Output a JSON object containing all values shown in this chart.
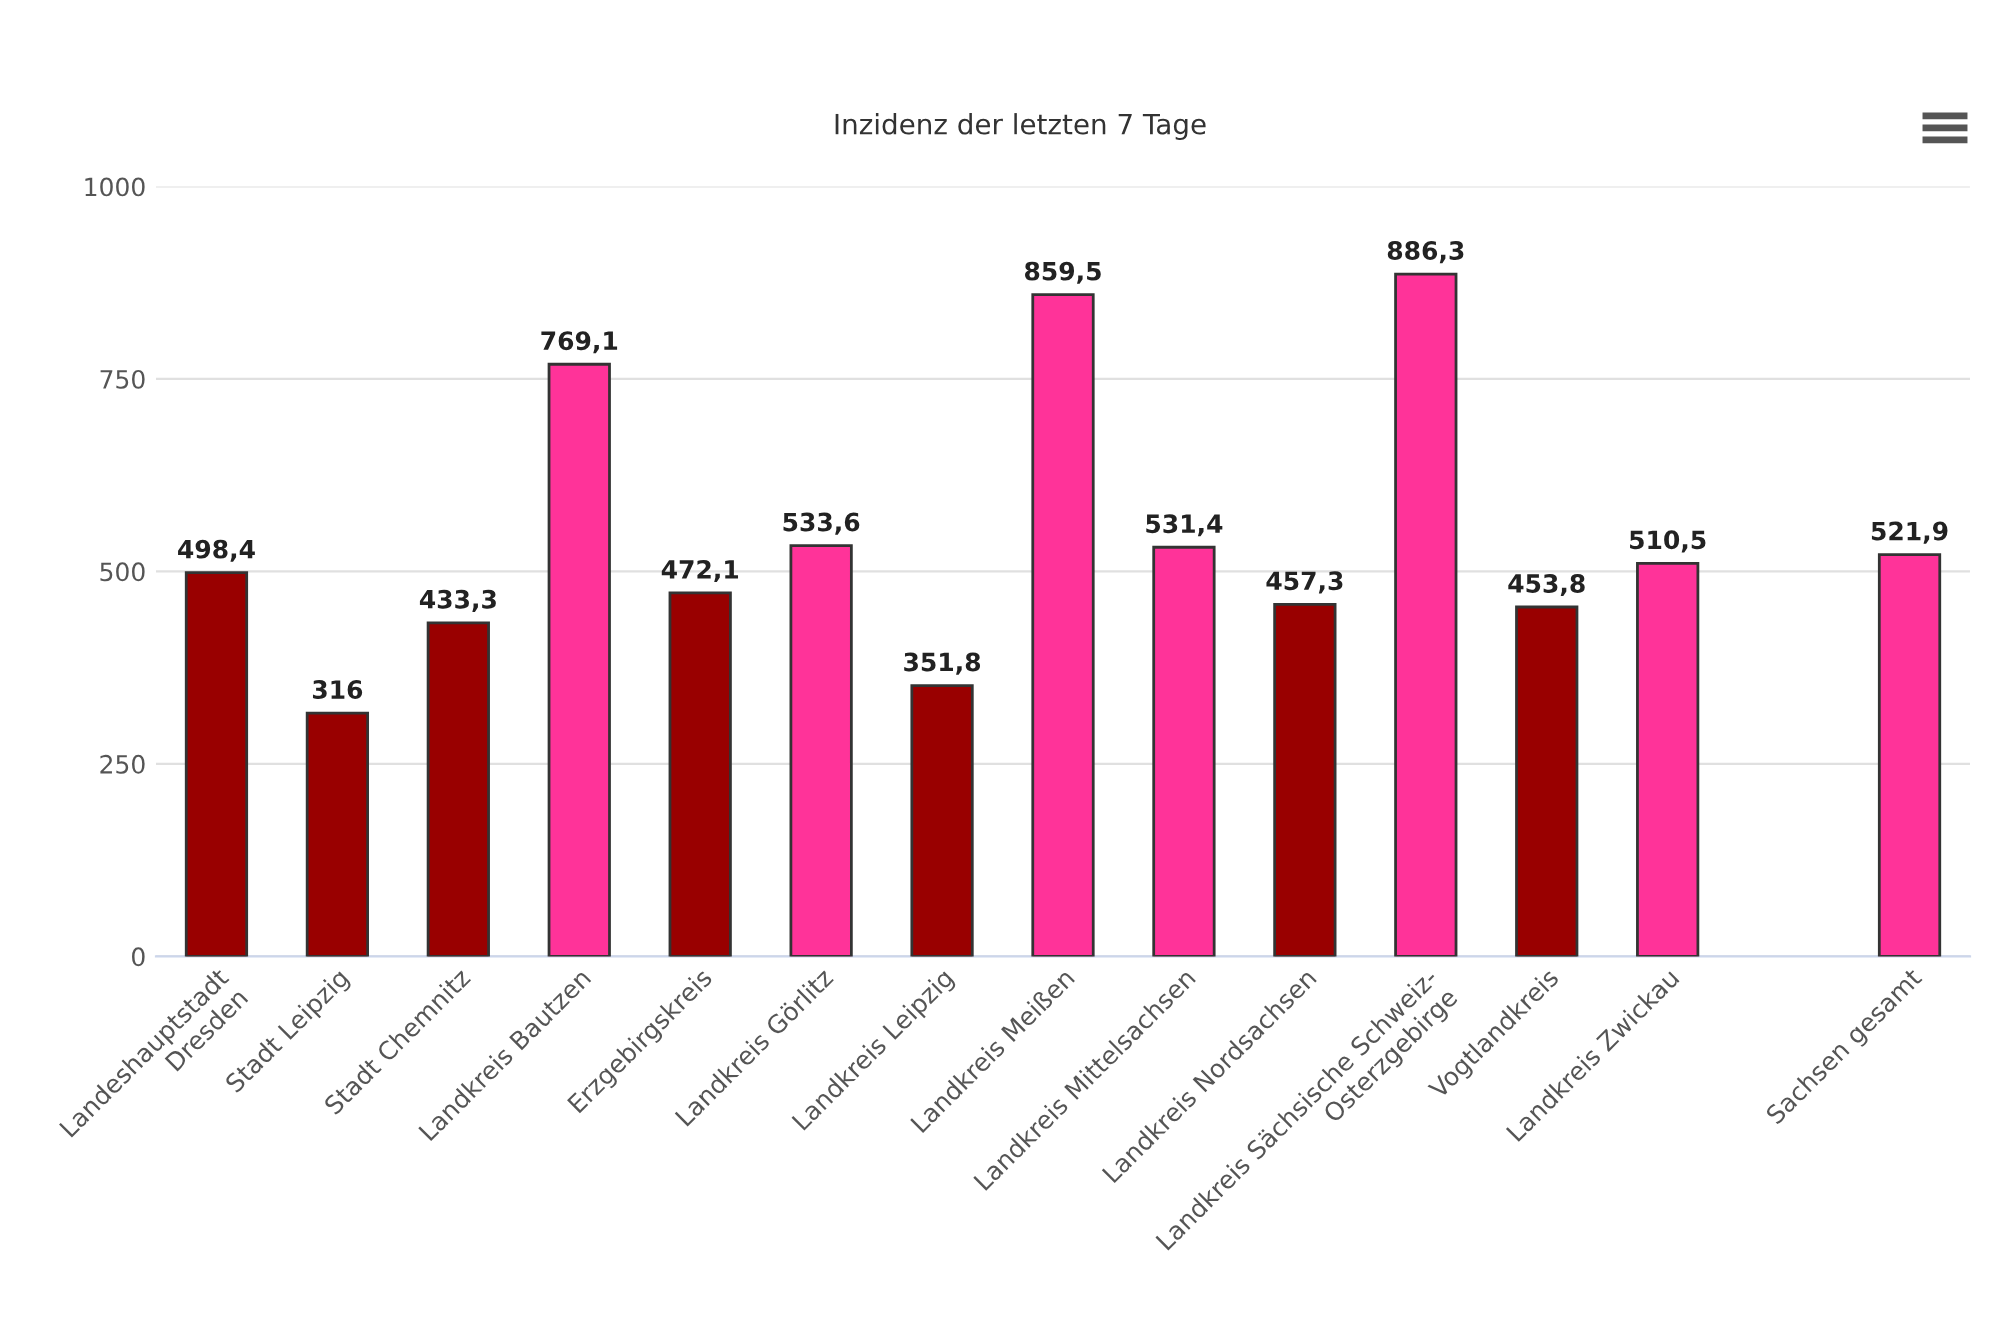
{
  "chart_data": {
    "type": "bar",
    "title": "Inzidenz der letzten 7 Tage",
    "categories": [
      "Landeshauptstadt\nDresden",
      "Stadt Leipzig",
      "Stadt Chemnitz",
      "Landkreis Bautzen",
      "Erzgebirgskreis",
      "Landkreis Görlitz",
      "Landkreis Leipzig",
      "Landkreis Meißen",
      "Landkreis Mittelsachsen",
      "Landkreis Nordsachsen",
      "Landkreis Sächsische Schweiz-\nOsterzgebirge",
      "Vogtlandkreis",
      "Landkreis Zwickau",
      null,
      "Sachsen gesamt"
    ],
    "values": [
      498.4,
      316,
      433.3,
      769.1,
      472.1,
      533.6,
      351.8,
      859.5,
      531.4,
      457.3,
      886.3,
      453.8,
      510.5,
      null,
      521.9
    ],
    "colors": [
      "#990000",
      "#990000",
      "#990000",
      "#ff3399",
      "#990000",
      "#ff3399",
      "#990000",
      "#ff3399",
      "#ff3399",
      "#990000",
      "#ff3399",
      "#990000",
      "#ff3399",
      "#ff3399",
      "#ff3399"
    ],
    "value_labels": [
      "498,4",
      "316",
      "433,3",
      "769,1",
      "472,1",
      "533,6",
      "351,8",
      "859,5",
      "531,4",
      "457,3",
      "886,3",
      "453,8",
      "510,5",
      null,
      "521,9"
    ],
    "ylim": [
      0,
      1000
    ],
    "yticks": [
      0,
      250,
      500,
      750,
      1000
    ],
    "grid": "y",
    "legend": false
  }
}
